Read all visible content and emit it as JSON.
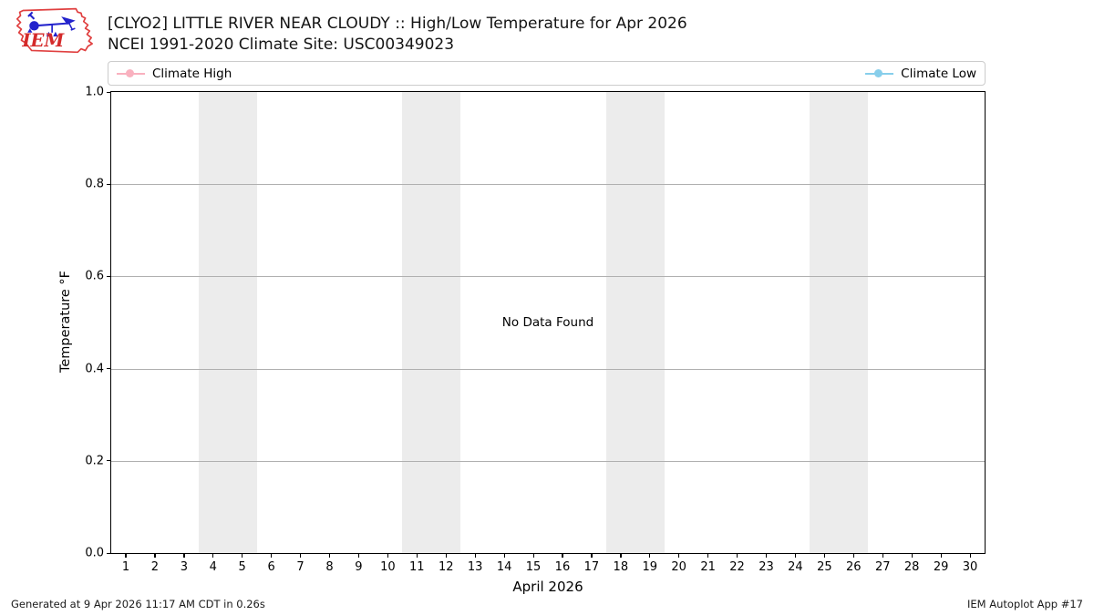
{
  "header": {
    "title_line1": "[CLYO2] LITTLE RIVER NEAR CLOUDY :: High/Low Temperature for Apr 2026",
    "title_line2": "NCEI 1991-2020 Climate Site: USC00349023",
    "logo_text": "IEM"
  },
  "legend": {
    "items": [
      {
        "label": "Climate High",
        "color": "#f9b1bf"
      },
      {
        "label": "Climate Low",
        "color": "#87ceeb"
      }
    ]
  },
  "chart_data": {
    "type": "line",
    "title": "[CLYO2] LITTLE RIVER NEAR CLOUDY :: High/Low Temperature for Apr 2026",
    "subtitle": "NCEI 1991-2020 Climate Site: USC00349023",
    "xlabel": "April 2026",
    "ylabel": "Temperature °F",
    "xlim": [
      0.5,
      30.5
    ],
    "ylim": [
      0.0,
      1.0
    ],
    "x_ticks": [
      1,
      2,
      3,
      4,
      5,
      6,
      7,
      8,
      9,
      10,
      11,
      12,
      13,
      14,
      15,
      16,
      17,
      18,
      19,
      20,
      21,
      22,
      23,
      24,
      25,
      26,
      27,
      28,
      29,
      30
    ],
    "y_ticks": [
      "0.0",
      "0.2",
      "0.4",
      "0.6",
      "0.8",
      "1.0"
    ],
    "grid": "horizontal-only",
    "legend_position": "top-expanded",
    "weekend_shading_day_ranges": [
      [
        3.5,
        5.5
      ],
      [
        10.5,
        12.5
      ],
      [
        17.5,
        19.5
      ],
      [
        24.5,
        26.5
      ]
    ],
    "shading_color": "#ececec",
    "gridline_color": "#b0b0b0",
    "series": [
      {
        "name": "Climate High",
        "color": "#f9b1bf",
        "marker": "circle",
        "x": [],
        "values": []
      },
      {
        "name": "Climate Low",
        "color": "#87ceeb",
        "marker": "circle",
        "x": [],
        "values": []
      }
    ],
    "annotation": "No Data Found",
    "no_data": true
  },
  "footer": {
    "left": "Generated at 9 Apr 2026 11:17 AM CDT in 0.26s",
    "right": "IEM Autoplot App #17"
  }
}
